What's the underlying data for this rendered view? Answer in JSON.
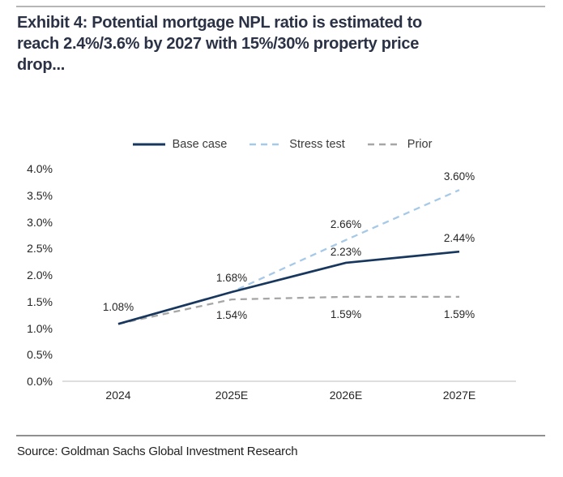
{
  "page": {
    "title_lines": [
      "Exhibit 4: Potential mortgage NPL ratio is estimated to",
      "reach 2.4%/3.6% by 2027 with 15%/30% property price",
      "drop..."
    ],
    "source": "Source: Goldman Sachs Global Investment Research"
  },
  "chart_data": {
    "type": "line",
    "title": "Potential mortgage NPL ratio forecast",
    "categories": [
      "2024",
      "2025E",
      "2026E",
      "2027E"
    ],
    "y_ticks": [
      "4.0%",
      "3.5%",
      "3.0%",
      "2.5%",
      "2.0%",
      "1.5%",
      "1.0%",
      "0.5%",
      "0.0%"
    ],
    "ylim": [
      0,
      4
    ],
    "grid": false,
    "legend_position": "top",
    "series": [
      {
        "name": "Base case",
        "color": "#17375E",
        "style": "solid",
        "values": [
          1.08,
          1.68,
          2.23,
          2.44
        ],
        "labels": [
          "1.08%",
          "1.68%",
          "2.23%",
          "2.44%"
        ]
      },
      {
        "name": "Stress test",
        "color": "#A7C9E8",
        "style": "dashed",
        "values": [
          1.08,
          1.68,
          2.66,
          3.6
        ],
        "labels": [
          null,
          null,
          "2.66%",
          "3.60%"
        ]
      },
      {
        "name": "Prior",
        "color": "#A6A6A6",
        "style": "dashed",
        "values": [
          1.08,
          1.54,
          1.59,
          1.59
        ],
        "labels": [
          null,
          "1.54%",
          "1.59%",
          "1.59%"
        ]
      }
    ],
    "axis_color": "#c9c9c9"
  }
}
